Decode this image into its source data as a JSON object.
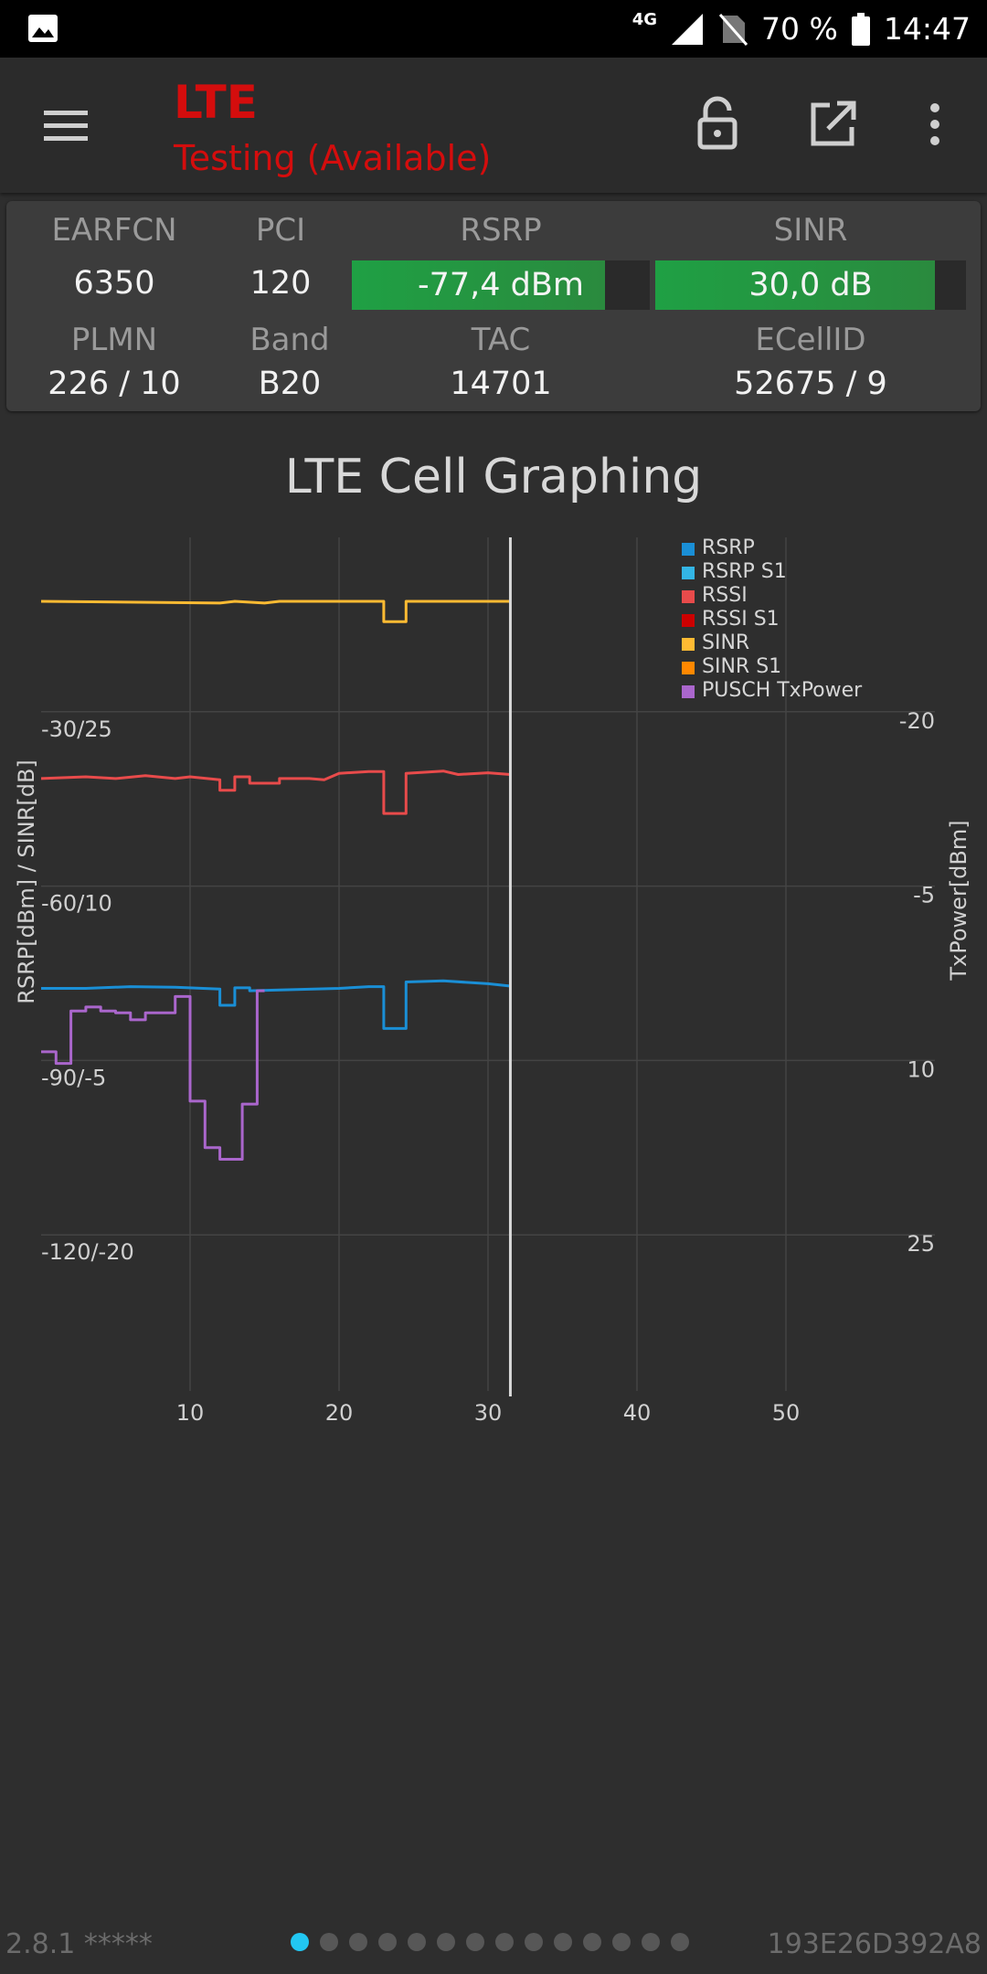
{
  "status_bar": {
    "network": "4G",
    "battery": "70 %",
    "time": "14:47"
  },
  "app_bar": {
    "title": "LTE",
    "subtitle": "Testing (Available)"
  },
  "cell_info": {
    "earfcn_label": "EARFCN",
    "earfcn_value": "6350",
    "pci_label": "PCI",
    "pci_value": "120",
    "rsrp_label": "RSRP",
    "rsrp_value": "-77,4 dBm",
    "rsrp_level": 0.85,
    "sinr_label": "SINR",
    "sinr_value": "30,0 dB",
    "sinr_level": 0.9,
    "plmn_label": "PLMN",
    "plmn_value": "226 / 10",
    "band_label": "Band",
    "band_value": "B20",
    "tac_label": "TAC",
    "tac_value": "14701",
    "ecellid_label": "ECellID",
    "ecellid_value": "52675 / 9"
  },
  "chart_data": {
    "type": "line",
    "title": "LTE Cell Graphing",
    "ylabel_left": "RSRP[dBm] / SINR[dB]",
    "ylabel_right": "TxPower[dBm]",
    "x_ticks": [
      "10",
      "20",
      "30",
      "40",
      "50"
    ],
    "xlim": [
      0,
      60
    ],
    "ylim_left": [
      -150,
      0
    ],
    "y_ticks_left": [
      {
        "value": -30,
        "label": "-30/25"
      },
      {
        "value": -60,
        "label": "-60/10"
      },
      {
        "value": -90,
        "label": "-90/-5"
      },
      {
        "value": -120,
        "label": "-120/-20"
      }
    ],
    "y_ticks_right": [
      {
        "value": -30,
        "label": "-20"
      },
      {
        "value": -60,
        "label": "-5"
      },
      {
        "value": -90,
        "label": "10"
      },
      {
        "value": -120,
        "label": "25"
      }
    ],
    "current_x": 31.5,
    "legend": [
      {
        "name": "RSRP",
        "color": "#1a8fd6"
      },
      {
        "name": "RSRP S1",
        "color": "#33b5e5"
      },
      {
        "name": "RSSI",
        "color": "#e84b4b"
      },
      {
        "name": "RSSI S1",
        "color": "#cc0000"
      },
      {
        "name": "SINR",
        "color": "#ffbb33"
      },
      {
        "name": "SINR S1",
        "color": "#ff8800"
      },
      {
        "name": "PUSCH TxPower",
        "color": "#aa66cc"
      }
    ],
    "series": [
      {
        "name": "SINR",
        "color": "#ffbb33",
        "points": [
          [
            0,
            -11
          ],
          [
            12,
            -11.3
          ],
          [
            13,
            -11
          ],
          [
            15,
            -11.3
          ],
          [
            16,
            -11
          ],
          [
            23,
            -11
          ],
          [
            23,
            -14.5
          ],
          [
            24.5,
            -14.5
          ],
          [
            24.5,
            -11
          ],
          [
            31.5,
            -11
          ]
        ]
      },
      {
        "name": "RSSI",
        "color": "#e84b4b",
        "points": [
          [
            0,
            -41.5
          ],
          [
            3,
            -41.2
          ],
          [
            5,
            -41.5
          ],
          [
            7,
            -41
          ],
          [
            9,
            -41.5
          ],
          [
            10,
            -41.2
          ],
          [
            12,
            -41.7
          ],
          [
            12,
            -43.5
          ],
          [
            13,
            -43.5
          ],
          [
            13,
            -41.2
          ],
          [
            14,
            -41.2
          ],
          [
            14,
            -42.3
          ],
          [
            16,
            -42.3
          ],
          [
            16,
            -41.5
          ],
          [
            18,
            -41.5
          ],
          [
            19,
            -41.7
          ],
          [
            20,
            -40.6
          ],
          [
            22,
            -40.3
          ],
          [
            23,
            -40.3
          ],
          [
            23,
            -47.5
          ],
          [
            24.5,
            -47.5
          ],
          [
            24.5,
            -40.6
          ],
          [
            27,
            -40.2
          ],
          [
            28,
            -40.8
          ],
          [
            30,
            -40.5
          ],
          [
            31.5,
            -40.8
          ]
        ]
      },
      {
        "name": "RSRP",
        "color": "#1a8fd6",
        "points": [
          [
            0,
            -77.6
          ],
          [
            3,
            -77.6
          ],
          [
            6,
            -77.3
          ],
          [
            9,
            -77.4
          ],
          [
            12,
            -77.7
          ],
          [
            12,
            -80.5
          ],
          [
            13,
            -80.5
          ],
          [
            13,
            -77.5
          ],
          [
            14,
            -77.5
          ],
          [
            14,
            -78
          ],
          [
            20,
            -77.6
          ],
          [
            22,
            -77.3
          ],
          [
            23,
            -77.3
          ],
          [
            23,
            -84.5
          ],
          [
            24.5,
            -84.5
          ],
          [
            24.5,
            -76.5
          ],
          [
            27,
            -76.3
          ],
          [
            30,
            -76.8
          ],
          [
            31.5,
            -77.2
          ]
        ]
      },
      {
        "name": "PUSCH TxPower",
        "color": "#aa66cc",
        "points": [
          [
            0,
            -88.5
          ],
          [
            1,
            -88.5
          ],
          [
            1,
            -90.5
          ],
          [
            2,
            -90.5
          ],
          [
            2,
            -81.5
          ],
          [
            3,
            -81.5
          ],
          [
            3,
            -80.8
          ],
          [
            4,
            -80.8
          ],
          [
            4,
            -81.5
          ],
          [
            5,
            -81.5
          ],
          [
            5,
            -81.8
          ],
          [
            6,
            -81.8
          ],
          [
            6,
            -83
          ],
          [
            7,
            -83
          ],
          [
            7,
            -81.8
          ],
          [
            9,
            -81.8
          ],
          [
            9,
            -79
          ],
          [
            10,
            -79
          ],
          [
            10,
            -97
          ],
          [
            11,
            -97
          ],
          [
            11,
            -105
          ],
          [
            12,
            -105
          ],
          [
            12,
            -107
          ],
          [
            13.5,
            -107
          ],
          [
            13.5,
            -97.5
          ],
          [
            14.5,
            -97.5
          ],
          [
            14.5,
            -78
          ],
          [
            15,
            -78
          ]
        ]
      }
    ]
  },
  "footer": {
    "version": "2.8.1 *****",
    "device_id": "193E26D392A8",
    "page_count": 14,
    "active_page": 0
  }
}
